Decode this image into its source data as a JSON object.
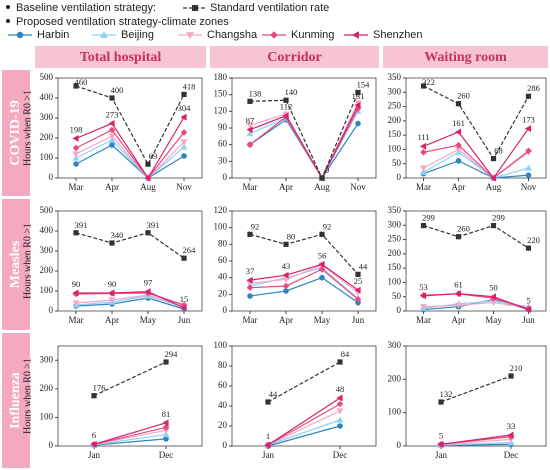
{
  "legend_headings": [
    "Baseline ventilation strategy:",
    "Proposed ventilation strategy-climate zones"
  ],
  "series_styles": [
    {
      "name": "Standard ventilation rate",
      "color": "#333333",
      "marker": "square",
      "dashed": true
    },
    {
      "name": "Harbin",
      "color": "#2e86c1",
      "marker": "circle",
      "dashed": false
    },
    {
      "name": "Beijing",
      "color": "#8fd3f4",
      "marker": "triangle-up",
      "dashed": false
    },
    {
      "name": "Changsha",
      "color": "#f4a6c8",
      "marker": "triangle-down",
      "dashed": false
    },
    {
      "name": "Kunming",
      "color": "#e84a7f",
      "marker": "diamond",
      "dashed": false
    },
    {
      "name": "Shenzhen",
      "color": "#d6246b",
      "marker": "triangle-left",
      "dashed": false
    }
  ],
  "columns": [
    "Total hospital",
    "Corridor",
    "Waiting room"
  ],
  "rows": [
    "COVID-19",
    "Measles",
    "Influenza"
  ],
  "chart_data": [
    {
      "type": "line",
      "ylabel": "Hours when R0 >1",
      "categories": [
        "Mar",
        "Apr",
        "Aug",
        "Nov"
      ],
      "ylim": [
        0,
        500
      ],
      "yticks": [
        0,
        100,
        200,
        300,
        400,
        500
      ],
      "series": [
        {
          "values": [
            460,
            400,
            69,
            418
          ],
          "value_labels": [
            "460",
            "400",
            "69",
            "418"
          ]
        },
        {
          "values": [
            70,
            165,
            0,
            110
          ]
        },
        {
          "values": [
            100,
            190,
            0,
            155
          ]
        },
        {
          "values": [
            120,
            210,
            0,
            180
          ]
        },
        {
          "values": [
            150,
            240,
            0,
            228
          ]
        },
        {
          "values": [
            198,
            273,
            0,
            304
          ],
          "value_labels": [
            "198",
            "273",
            null,
            "304"
          ]
        }
      ]
    },
    {
      "type": "line",
      "categories": [
        "Mar",
        "Apr",
        "Aug",
        "Nov"
      ],
      "ylim": [
        0,
        180
      ],
      "yticks": [
        0,
        30,
        60,
        90,
        120,
        150,
        180
      ],
      "series": [
        {
          "values": [
            138,
            140,
            0,
            154
          ],
          "value_labels": [
            "138",
            "140",
            "0",
            "154"
          ]
        },
        {
          "values": [
            60,
            105,
            0,
            98
          ]
        },
        {
          "values": [
            80,
            108,
            0,
            120
          ]
        },
        {
          "values": [
            95,
            115,
            0,
            135
          ]
        },
        {
          "values": [
            60,
            110,
            0,
            125
          ]
        },
        {
          "values": [
            87,
            112,
            0,
            131
          ],
          "value_labels": [
            "87",
            "112",
            null,
            "131"
          ]
        }
      ]
    },
    {
      "type": "line",
      "categories": [
        "Mar",
        "Apr",
        "Aug",
        "Nov"
      ],
      "ylim": [
        0,
        350
      ],
      "yticks": [
        0,
        50,
        100,
        150,
        200,
        250,
        300,
        350
      ],
      "series": [
        {
          "values": [
            322,
            260,
            68,
            286
          ],
          "value_labels": [
            "322",
            "260",
            "68",
            "286"
          ]
        },
        {
          "values": [
            15,
            60,
            0,
            10
          ]
        },
        {
          "values": [
            20,
            90,
            0,
            35
          ]
        },
        {
          "values": [
            35,
            100,
            0,
            90
          ]
        },
        {
          "values": [
            90,
            115,
            0,
            95
          ]
        },
        {
          "values": [
            111,
            161,
            0,
            173
          ],
          "value_labels": [
            "111",
            "161",
            null,
            "173"
          ]
        }
      ]
    },
    {
      "type": "line",
      "ylabel": "Hours when R0 >1",
      "categories": [
        "Mar",
        "Apr",
        "May",
        "Jun"
      ],
      "ylim": [
        0,
        500
      ],
      "yticks": [
        0,
        100,
        200,
        300,
        400,
        500
      ],
      "series": [
        {
          "values": [
            391,
            340,
            391,
            264
          ],
          "value_labels": [
            "391",
            "340",
            "391",
            "264"
          ]
        },
        {
          "values": [
            25,
            35,
            65,
            10
          ]
        },
        {
          "values": [
            30,
            45,
            75,
            20
          ]
        },
        {
          "values": [
            40,
            55,
            80,
            25
          ]
        },
        {
          "values": [
            85,
            88,
            90,
            30
          ]
        },
        {
          "values": [
            90,
            90,
            97,
            15
          ],
          "value_labels": [
            "90",
            "90",
            "97",
            "15"
          ]
        }
      ]
    },
    {
      "type": "line",
      "categories": [
        "Mar",
        "Apr",
        "May",
        "Jun"
      ],
      "ylim": [
        0,
        120
      ],
      "yticks": [
        0,
        20,
        40,
        60,
        80,
        100,
        120
      ],
      "series": [
        {
          "values": [
            92,
            80,
            92,
            44
          ],
          "value_labels": [
            "92",
            "80",
            "92",
            "44"
          ]
        },
        {
          "values": [
            18,
            24,
            40,
            10
          ]
        },
        {
          "values": [
            30,
            40,
            52,
            15
          ]
        },
        {
          "values": [
            33,
            38,
            55,
            22
          ]
        },
        {
          "values": [
            28,
            30,
            50,
            14
          ]
        },
        {
          "values": [
            37,
            43,
            56,
            25
          ],
          "value_labels": [
            "37",
            "43",
            "56",
            "25"
          ]
        }
      ]
    },
    {
      "type": "line",
      "categories": [
        "Mar",
        "Apr",
        "May",
        "Jun"
      ],
      "ylim": [
        0,
        350
      ],
      "yticks": [
        0,
        50,
        100,
        150,
        200,
        250,
        300,
        350
      ],
      "series": [
        {
          "values": [
            299,
            260,
            299,
            220
          ],
          "value_labels": [
            "299",
            "260",
            "299",
            "220"
          ]
        },
        {
          "values": [
            5,
            15,
            40,
            5
          ]
        },
        {
          "values": [
            10,
            25,
            35,
            15
          ]
        },
        {
          "values": [
            15,
            20,
            30,
            10
          ]
        },
        {
          "values": [
            55,
            60,
            45,
            8
          ]
        },
        {
          "values": [
            53,
            61,
            50,
            5
          ],
          "value_labels": [
            "53",
            "61",
            "50",
            "5"
          ]
        }
      ]
    },
    {
      "type": "line",
      "ylabel": "Hours when R0 >1",
      "categories": [
        "Jan",
        "Dec"
      ],
      "ylim": [
        0,
        350
      ],
      "yticks": [
        0,
        100,
        200,
        300
      ],
      "series": [
        {
          "values": [
            176,
            294
          ],
          "value_labels": [
            "176",
            "294"
          ]
        },
        {
          "values": [
            3,
            25
          ]
        },
        {
          "values": [
            4,
            40
          ]
        },
        {
          "values": [
            5,
            55
          ]
        },
        {
          "values": [
            6,
            65
          ]
        },
        {
          "values": [
            6,
            81
          ],
          "value_labels": [
            "6",
            "81"
          ]
        }
      ]
    },
    {
      "type": "line",
      "categories": [
        "Jan",
        "Dec"
      ],
      "ylim": [
        0,
        100
      ],
      "yticks": [
        0,
        20,
        40,
        60,
        80,
        100
      ],
      "series": [
        {
          "values": [
            44,
            84
          ],
          "value_labels": [
            "44",
            "84"
          ]
        },
        {
          "values": [
            0,
            20
          ]
        },
        {
          "values": [
            1,
            26
          ]
        },
        {
          "values": [
            1,
            35
          ]
        },
        {
          "values": [
            1,
            42
          ]
        },
        {
          "values": [
            1,
            48
          ],
          "value_labels": [
            "1",
            "48"
          ]
        }
      ]
    },
    {
      "type": "line",
      "categories": [
        "Jan",
        "Dec"
      ],
      "ylim": [
        0,
        300
      ],
      "yticks": [
        0,
        100,
        200,
        300
      ],
      "series": [
        {
          "values": [
            132,
            210
          ],
          "value_labels": [
            "132",
            "210"
          ]
        },
        {
          "values": [
            2,
            5
          ]
        },
        {
          "values": [
            3,
            10
          ]
        },
        {
          "values": [
            4,
            20
          ]
        },
        {
          "values": [
            5,
            28
          ]
        },
        {
          "values": [
            5,
            33
          ],
          "value_labels": [
            "5",
            "33"
          ]
        }
      ]
    }
  ]
}
